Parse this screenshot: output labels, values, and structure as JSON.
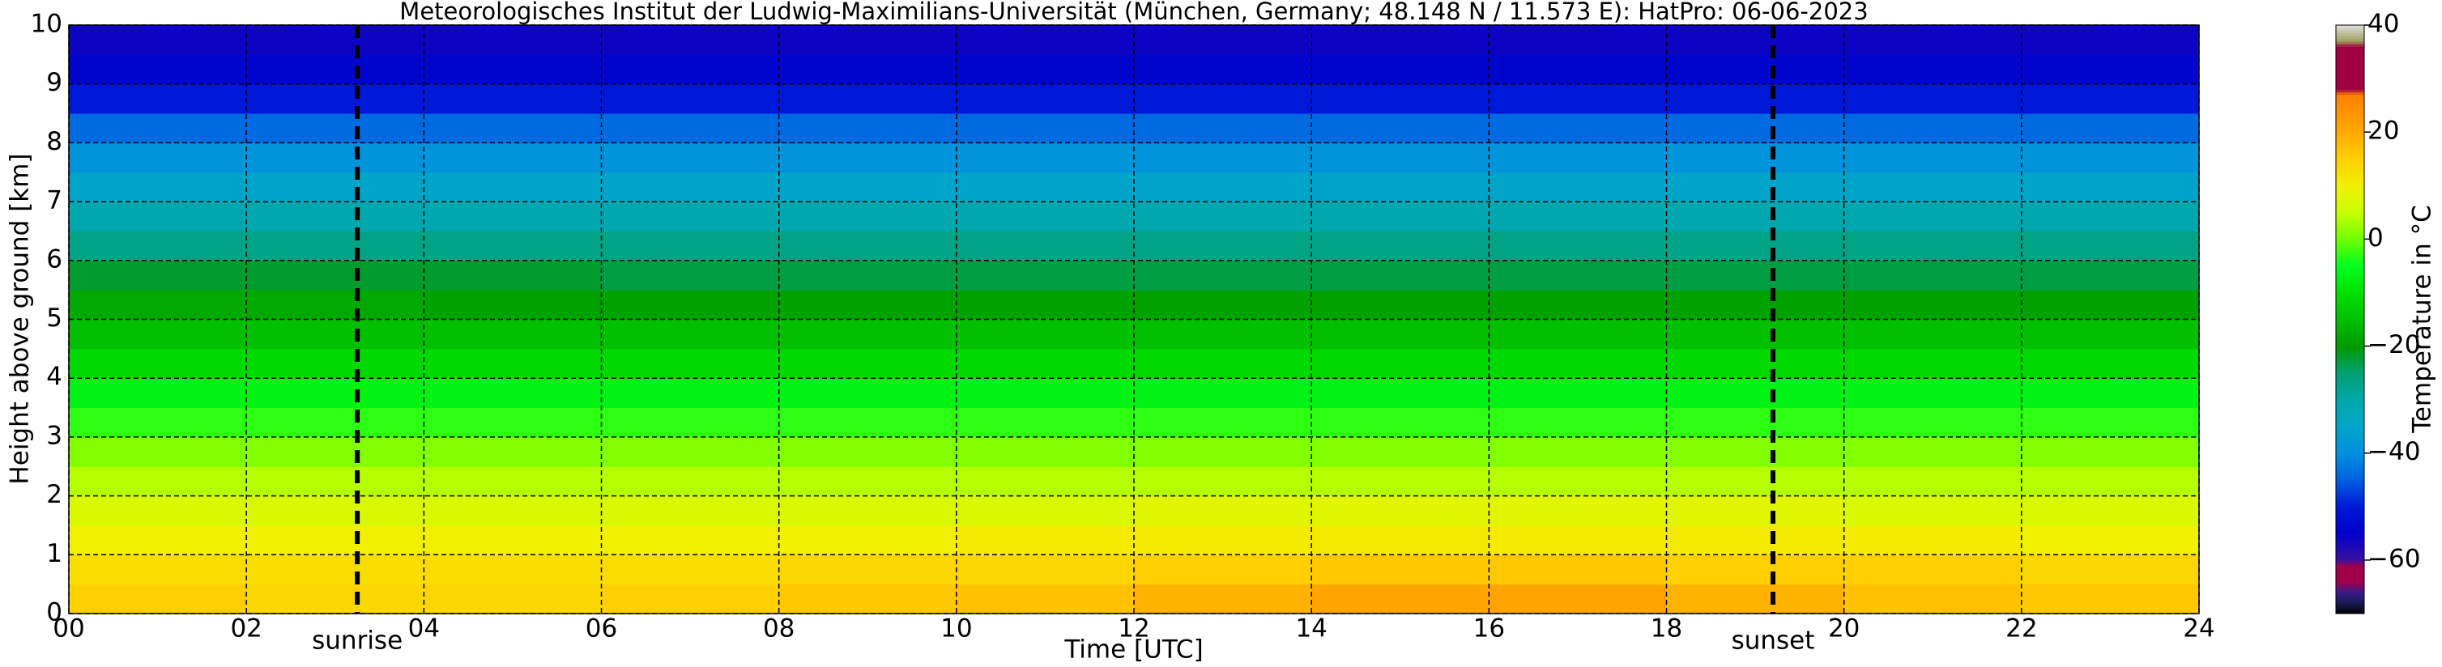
{
  "chart_data": {
    "type": "heatmap",
    "title": "Meteorologisches Institut der Ludwig-Maximilians-Universität (München, Germany; 48.148 N / 11.573 E):    HatPro: 06-06-2023",
    "xlabel": "Time [UTC]",
    "ylabel": "Height above ground [km]",
    "colorbar_label": "Temperature in °C",
    "x": [
      1,
      3,
      5,
      7,
      9,
      11,
      13,
      15,
      17,
      19,
      21,
      23
    ],
    "y": [
      0.25,
      0.75,
      1.25,
      1.75,
      2.25,
      2.75,
      3.25,
      3.75,
      4.25,
      4.75,
      5.25,
      5.75,
      6.25,
      6.75,
      7.25,
      7.75,
      8.25,
      8.75,
      9.25,
      9.75
    ],
    "z": [
      [
        15,
        14,
        14,
        15,
        16,
        17,
        19,
        21,
        21,
        19,
        17,
        16
      ],
      [
        13,
        13,
        13,
        13,
        14,
        14,
        15,
        16,
        16,
        15,
        15,
        14
      ],
      [
        10,
        10,
        10,
        10,
        10,
        11,
        11,
        11,
        11,
        11,
        11,
        10
      ],
      [
        7,
        7,
        7,
        7,
        7,
        7,
        8,
        8,
        8,
        8,
        7,
        7
      ],
      [
        4,
        4,
        4,
        4,
        4,
        4,
        4,
        4,
        4,
        4,
        4,
        4
      ],
      [
        1,
        1,
        1,
        1,
        1,
        1,
        1,
        1,
        1,
        1,
        1,
        1
      ],
      [
        -3,
        -3,
        -3,
        -3,
        -3,
        -3,
        -3,
        -3,
        -3,
        -3,
        -3,
        -3
      ],
      [
        -7,
        -7,
        -7,
        -7,
        -7,
        -7,
        -7,
        -7,
        -7,
        -7,
        -7,
        -7
      ],
      [
        -11,
        -11,
        -11,
        -11,
        -11,
        -11,
        -11,
        -11,
        -11,
        -11,
        -11,
        -11
      ],
      [
        -15,
        -15,
        -15,
        -15,
        -15,
        -15,
        -15,
        -15,
        -15,
        -15,
        -15,
        -15
      ],
      [
        -18,
        -18,
        -19,
        -19,
        -19,
        -19,
        -19,
        -19,
        -19,
        -19,
        -19,
        -19
      ],
      [
        -22,
        -22,
        -22,
        -23,
        -23,
        -23,
        -23,
        -23,
        -23,
        -23,
        -23,
        -23
      ],
      [
        -27,
        -27,
        -27,
        -27,
        -27,
        -27,
        -27,
        -27,
        -27,
        -27,
        -27,
        -27
      ],
      [
        -31,
        -31,
        -31,
        -31,
        -31,
        -31,
        -31,
        -31,
        -31,
        -31,
        -31,
        -31
      ],
      [
        -35,
        -35,
        -35,
        -35,
        -35,
        -35,
        -35,
        -35,
        -35,
        -35,
        -35,
        -35
      ],
      [
        -39,
        -39,
        -39,
        -39,
        -39,
        -39,
        -39,
        -39,
        -39,
        -39,
        -39,
        -39
      ],
      [
        -44,
        -44,
        -44,
        -44,
        -44,
        -44,
        -44,
        -44,
        -44,
        -44,
        -44,
        -44
      ],
      [
        -50,
        -50,
        -50,
        -50,
        -50,
        -50,
        -50,
        -50,
        -50,
        -50,
        -50,
        -50
      ],
      [
        -54,
        -54,
        -54,
        -54,
        -54,
        -54,
        -54,
        -54,
        -54,
        -54,
        -54,
        -54
      ],
      [
        -56,
        -56,
        -56,
        -56,
        -56,
        -56,
        -56,
        -56,
        -56,
        -56,
        -56,
        -56
      ]
    ],
    "xlim": [
      0,
      24
    ],
    "ylim": [
      0,
      10
    ],
    "zlim": [
      -70,
      40
    ],
    "xticks": [
      {
        "value": 0,
        "label": "00"
      },
      {
        "value": 2,
        "label": "02"
      },
      {
        "value": 4,
        "label": "04"
      },
      {
        "value": 6,
        "label": "06"
      },
      {
        "value": 8,
        "label": "08"
      },
      {
        "value": 10,
        "label": "10"
      },
      {
        "value": 12,
        "label": "12"
      },
      {
        "value": 14,
        "label": "14"
      },
      {
        "value": 16,
        "label": "16"
      },
      {
        "value": 18,
        "label": "18"
      },
      {
        "value": 20,
        "label": "20"
      },
      {
        "value": 22,
        "label": "22"
      },
      {
        "value": 24,
        "label": "24"
      }
    ],
    "yticks": [
      0,
      1,
      2,
      3,
      4,
      5,
      6,
      7,
      8,
      9,
      10
    ],
    "zticks": [
      {
        "value": -60,
        "label": "−60"
      },
      {
        "value": -40,
        "label": "−40"
      },
      {
        "value": -20,
        "label": "−20"
      },
      0,
      20,
      40
    ],
    "grid": true,
    "annotations": [
      {
        "x": 3.25,
        "label": "sunrise"
      },
      {
        "x": 19.2,
        "label": "sunset"
      }
    ],
    "colorscale": [
      [
        -70,
        "#000000"
      ],
      [
        -68,
        "#1a1a50"
      ],
      [
        -66,
        "#3a1a8a"
      ],
      [
        -64,
        "#a0004a"
      ],
      [
        -61,
        "#a0004a"
      ],
      [
        -60,
        "#3a10a0"
      ],
      [
        -55,
        "#0000cc"
      ],
      [
        -50,
        "#0018d8"
      ],
      [
        -45,
        "#0060e0"
      ],
      [
        -40,
        "#0090e0"
      ],
      [
        -35,
        "#00a4c8"
      ],
      [
        -30,
        "#00a8a8"
      ],
      [
        -25,
        "#00a070"
      ],
      [
        -20,
        "#009a00"
      ],
      [
        -15,
        "#00c000"
      ],
      [
        -10,
        "#00e000"
      ],
      [
        -5,
        "#00ff20"
      ],
      [
        0,
        "#70ff00"
      ],
      [
        5,
        "#c8ff00"
      ],
      [
        10,
        "#f0f000"
      ],
      [
        15,
        "#ffd000"
      ],
      [
        20,
        "#ffaa00"
      ],
      [
        27,
        "#ff8000"
      ],
      [
        28,
        "#a00040"
      ],
      [
        36,
        "#a00040"
      ],
      [
        37,
        "#a0a060"
      ],
      [
        39,
        "#c8c8b0"
      ],
      [
        40,
        "#e0e0e0"
      ]
    ]
  }
}
